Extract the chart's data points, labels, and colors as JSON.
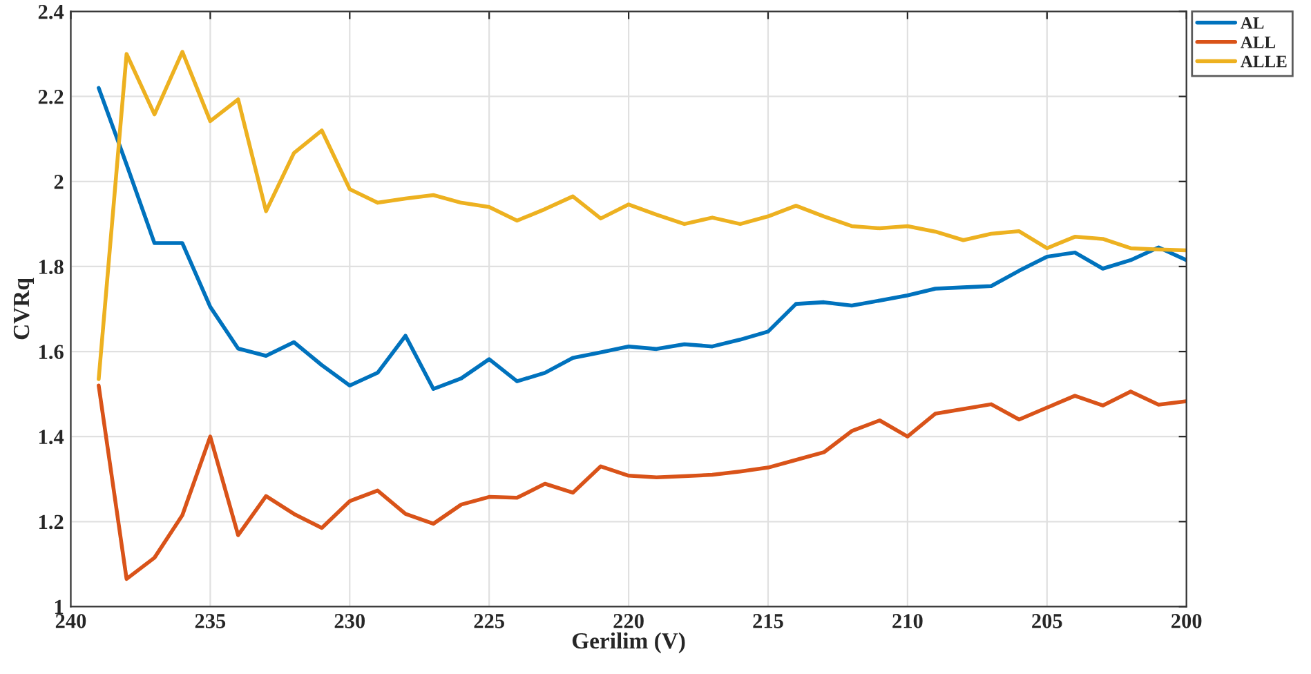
{
  "chart_data": {
    "type": "line",
    "xlabel": "Gerilim (V)",
    "ylabel": "CVRq",
    "x": [
      239,
      238,
      237,
      236,
      235,
      234,
      233,
      232,
      231,
      230,
      229,
      228,
      227,
      226,
      225,
      224,
      223,
      222,
      221,
      220,
      219,
      218,
      217,
      216,
      215,
      214,
      213,
      212,
      211,
      210,
      209,
      208,
      207,
      206,
      205,
      204,
      203,
      202,
      201,
      200
    ],
    "series": [
      {
        "name": "AL",
        "color": "#0072bd",
        "values": [
          2.22,
          2.04,
          1.855,
          1.855,
          1.705,
          1.607,
          1.59,
          1.622,
          1.568,
          1.52,
          1.55,
          1.637,
          1.512,
          1.537,
          1.582,
          1.53,
          1.55,
          1.585,
          1.598,
          1.612,
          1.606,
          1.617,
          1.612,
          1.628,
          1.647,
          1.712,
          1.716,
          1.708,
          1.72,
          1.732,
          1.748,
          1.751,
          1.754,
          1.79,
          1.823,
          1.833,
          1.795,
          1.815,
          1.845,
          1.815
        ]
      },
      {
        "name": "ALL",
        "color": "#d95319",
        "values": [
          1.52,
          1.065,
          1.115,
          1.215,
          1.4,
          1.168,
          1.26,
          1.218,
          1.185,
          1.248,
          1.273,
          1.218,
          1.195,
          1.24,
          1.258,
          1.256,
          1.289,
          1.268,
          1.33,
          1.308,
          1.304,
          1.307,
          1.31,
          1.318,
          1.327,
          1.345,
          1.363,
          1.413,
          1.438,
          1.4,
          1.454,
          1.465,
          1.476,
          1.44,
          1.468,
          1.496,
          1.473,
          1.506,
          1.475,
          1.483
        ]
      },
      {
        "name": "ALLE",
        "color": "#edb120",
        "values": [
          1.535,
          2.3,
          2.158,
          2.305,
          2.142,
          2.193,
          1.93,
          2.067,
          2.12,
          1.982,
          1.95,
          1.96,
          1.968,
          1.95,
          1.94,
          1.908,
          1.935,
          1.965,
          1.913,
          1.946,
          1.922,
          1.9,
          1.915,
          1.9,
          1.918,
          1.943,
          1.918,
          1.895,
          1.89,
          1.895,
          1.882,
          1.862,
          1.877,
          1.883,
          1.843,
          1.87,
          1.865,
          1.843,
          1.84,
          1.838
        ]
      }
    ],
    "xlim": [
      240,
      200
    ],
    "xticks": [
      240,
      235,
      230,
      225,
      220,
      215,
      210,
      205,
      200
    ],
    "ylim": [
      1,
      2.4
    ],
    "yticks": [
      1,
      1.2,
      1.4,
      1.6,
      1.8,
      2,
      2.2,
      2.4
    ],
    "grid": true,
    "legend": "top right",
    "line_style": "solid",
    "marker": "none"
  }
}
